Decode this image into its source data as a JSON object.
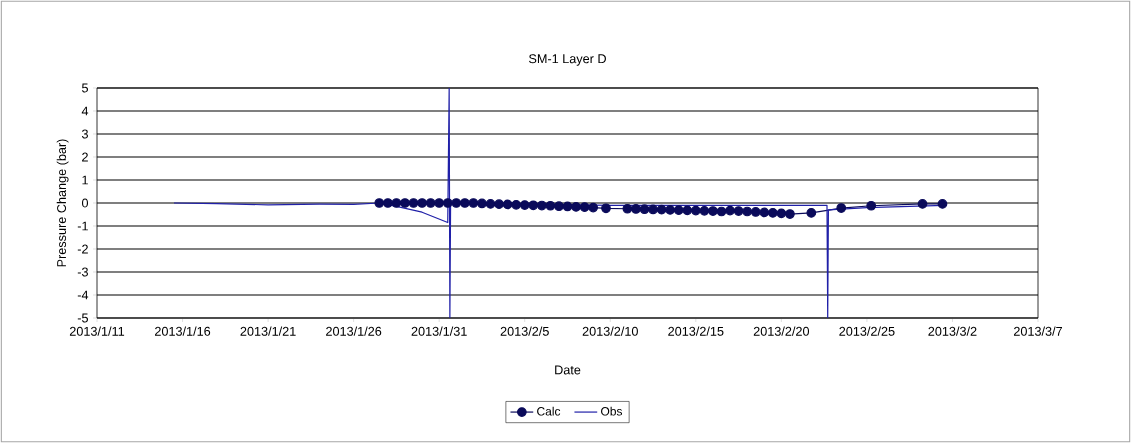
{
  "chart_data": {
    "type": "line",
    "title": "SM-1 Layer D",
    "xlabel": "Date",
    "ylabel": "Pressure Change (bar)",
    "xlim": [
      "2013-01-11",
      "2013-03-07"
    ],
    "xticks": [
      {
        "value": "2013-01-11",
        "label": "2013/1/11"
      },
      {
        "value": "2013-01-16",
        "label": "2013/1/16"
      },
      {
        "value": "2013-01-21",
        "label": "2013/1/21"
      },
      {
        "value": "2013-01-26",
        "label": "2013/1/26"
      },
      {
        "value": "2013-01-31",
        "label": "2013/1/31"
      },
      {
        "value": "2013-02-05",
        "label": "2013/2/5"
      },
      {
        "value": "2013-02-10",
        "label": "2013/2/10"
      },
      {
        "value": "2013-02-15",
        "label": "2013/2/15"
      },
      {
        "value": "2013-02-20",
        "label": "2013/2/20"
      },
      {
        "value": "2013-02-25",
        "label": "2013/2/25"
      },
      {
        "value": "2013-03-02",
        "label": "2013/3/2"
      },
      {
        "value": "2013-03-07",
        "label": "2013/3/7"
      }
    ],
    "ylim": [
      -5,
      5
    ],
    "yticks": [
      -5,
      -4,
      -3,
      -2,
      -1,
      0,
      1,
      2,
      3,
      4,
      5
    ],
    "grid": "y",
    "legend": "bottom",
    "series": [
      {
        "name": "Calc",
        "color": "#0a0a5a",
        "marker": "circle",
        "x": [
          "2013-01-27T12:00",
          "2013-01-28T00:00",
          "2013-01-28T12:00",
          "2013-01-29T00:00",
          "2013-01-29T12:00",
          "2013-01-30T00:00",
          "2013-01-30T12:00",
          "2013-01-31T00:00",
          "2013-01-31T12:00",
          "2013-02-01T00:00",
          "2013-02-01T12:00",
          "2013-02-02T00:00",
          "2013-02-02T12:00",
          "2013-02-03T00:00",
          "2013-02-03T12:00",
          "2013-02-04T00:00",
          "2013-02-04T12:00",
          "2013-02-05T00:00",
          "2013-02-05T12:00",
          "2013-02-06T00:00",
          "2013-02-06T12:00",
          "2013-02-07T00:00",
          "2013-02-07T12:00",
          "2013-02-08T00:00",
          "2013-02-08T12:00",
          "2013-02-09T00:00",
          "2013-02-09T18:00",
          "2013-02-11T00:00",
          "2013-02-11T12:00",
          "2013-02-12T00:00",
          "2013-02-12T12:00",
          "2013-02-13T00:00",
          "2013-02-13T12:00",
          "2013-02-14T00:00",
          "2013-02-14T12:00",
          "2013-02-15T00:00",
          "2013-02-15T12:00",
          "2013-02-16T00:00",
          "2013-02-16T12:00",
          "2013-02-17T00:00",
          "2013-02-17T12:00",
          "2013-02-18T00:00",
          "2013-02-18T12:00",
          "2013-02-19T00:00",
          "2013-02-19T12:00",
          "2013-02-20T00:00",
          "2013-02-20T12:00",
          "2013-02-21T18:00",
          "2013-02-23T12:00",
          "2013-02-25T06:00",
          "2013-02-28T06:00",
          "2013-03-01T10:00"
        ],
        "values": [
          0.0,
          0.0,
          0.0,
          0.0,
          0.0,
          0.0,
          0.0,
          0.0,
          0.0,
          0.0,
          0.0,
          0.0,
          -0.02,
          -0.04,
          -0.05,
          -0.06,
          -0.08,
          -0.09,
          -0.1,
          -0.11,
          -0.12,
          -0.14,
          -0.15,
          -0.17,
          -0.18,
          -0.2,
          -0.23,
          -0.25,
          -0.26,
          -0.27,
          -0.28,
          -0.29,
          -0.3,
          -0.31,
          -0.32,
          -0.33,
          -0.34,
          -0.35,
          -0.37,
          -0.33,
          -0.35,
          -0.37,
          -0.39,
          -0.41,
          -0.43,
          -0.45,
          -0.48,
          -0.43,
          -0.22,
          -0.12,
          -0.04,
          -0.04
        ]
      },
      {
        "name": "Obs",
        "color": "#2020a8",
        "marker": "none",
        "x": [
          "2013-01-15T12:00",
          "2013-01-18T00:00",
          "2013-01-21T00:00",
          "2013-01-24T00:00",
          "2013-01-26T00:00",
          "2013-01-27T12:00",
          "2013-01-28T12:00",
          "2013-01-30T00:00",
          "2013-01-31T12:00",
          "2013-01-31T14:00",
          "2013-01-31T15:00",
          "2013-01-31T16:00",
          "2013-02-05T00:00",
          "2013-02-10T00:00",
          "2013-02-15T00:00",
          "2013-02-22T16:00",
          "2013-02-22T17:00",
          "2013-02-22T18:00",
          "2013-02-25T00:00",
          "2013-03-01T12:00"
        ],
        "values": [
          0.0,
          -0.03,
          -0.08,
          -0.05,
          -0.06,
          0.0,
          -0.15,
          -0.4,
          -0.85,
          5,
          -5,
          0.0,
          -0.05,
          -0.1,
          -0.1,
          -0.1,
          -5,
          -0.3,
          -0.2,
          -0.1
        ]
      }
    ]
  }
}
